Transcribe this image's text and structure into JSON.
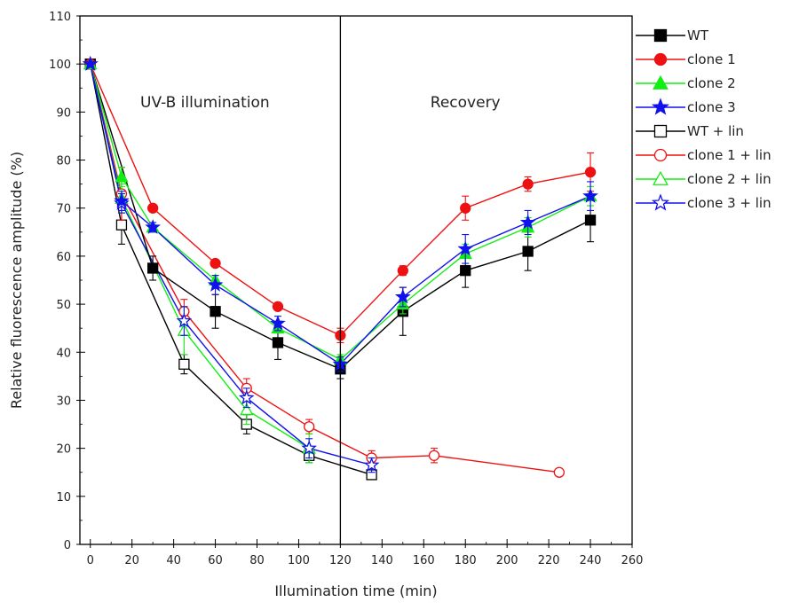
{
  "chart_data": {
    "type": "line",
    "title": "",
    "xlabel": "Illumination time (min)",
    "ylabel": "Relative fluorescence amplitude (%)",
    "xlim": [
      -5,
      260
    ],
    "ylim": [
      0,
      110
    ],
    "xticks": [
      0,
      20,
      40,
      60,
      80,
      100,
      120,
      140,
      160,
      180,
      200,
      220,
      240,
      260
    ],
    "yticks": [
      0,
      10,
      20,
      30,
      40,
      50,
      60,
      70,
      80,
      90,
      100,
      110
    ],
    "grid": false,
    "legend_position": "top-right outside",
    "divider_x": 120,
    "annotations": [
      {
        "text": "UV-B illumination",
        "x": 55,
        "y": 91
      },
      {
        "text": "Recovery",
        "x": 180,
        "y": 91
      }
    ],
    "series": [
      {
        "name": "WT",
        "color": "#000000",
        "marker": "square",
        "filled": true,
        "x": [
          0,
          30,
          60,
          90,
          120,
          150,
          180,
          210,
          240
        ],
        "y": [
          100,
          57.5,
          48.5,
          42,
          36.5,
          48.5,
          57,
          61,
          67.5
        ],
        "err": [
          0,
          2.5,
          3.5,
          3.5,
          2,
          5,
          3.5,
          4,
          4.5
        ]
      },
      {
        "name": "clone 1",
        "color": "#ee1111",
        "marker": "circle",
        "filled": true,
        "x": [
          0,
          30,
          60,
          90,
          120,
          150,
          180,
          210,
          240
        ],
        "y": [
          100,
          70,
          58.5,
          49.5,
          43.5,
          57,
          70,
          75,
          77.5
        ],
        "err": [
          0,
          0.5,
          0.5,
          0.5,
          1.5,
          1,
          2.5,
          1.5,
          4
        ]
      },
      {
        "name": "clone 2",
        "color": "#11ee11",
        "marker": "triangle",
        "filled": true,
        "x": [
          0,
          15,
          30,
          60,
          90,
          120,
          150,
          180,
          210,
          240
        ],
        "y": [
          100,
          76.5,
          66,
          55,
          45,
          38.5,
          50,
          60.5,
          66,
          72.5
        ],
        "err": [
          0,
          2,
          0.5,
          1,
          1,
          1,
          2,
          2,
          2,
          2
        ]
      },
      {
        "name": "clone 3",
        "color": "#1111ee",
        "marker": "star",
        "filled": true,
        "x": [
          0,
          15,
          30,
          60,
          90,
          120,
          150,
          180,
          210,
          240
        ],
        "y": [
          100,
          71.5,
          66,
          54,
          46,
          37.5,
          51.5,
          61.5,
          67,
          72.5
        ],
        "err": [
          0,
          2,
          1,
          2,
          1.5,
          1.5,
          2,
          3,
          2.5,
          3
        ]
      },
      {
        "name": "WT + lin",
        "color": "#000000",
        "marker": "square",
        "filled": false,
        "x": [
          0,
          15,
          45,
          75,
          105,
          135
        ],
        "y": [
          100,
          66.5,
          37.5,
          25,
          18.5,
          14.5
        ],
        "err": [
          0,
          4,
          2,
          2,
          1.5,
          1
        ]
      },
      {
        "name": "clone 1 + lin",
        "color": "#ee1111",
        "marker": "circle",
        "filled": false,
        "x": [
          0,
          15,
          45,
          75,
          105,
          135,
          165,
          225
        ],
        "y": [
          100,
          73,
          48.5,
          32.5,
          24.5,
          18,
          18.5,
          15
        ],
        "err": [
          0,
          5.5,
          2.5,
          2,
          1.5,
          1.5,
          1.5,
          0.5
        ]
      },
      {
        "name": "clone 2 + lin",
        "color": "#11ee11",
        "marker": "triangle",
        "filled": false,
        "x": [
          0,
          15,
          45,
          75,
          105
        ],
        "y": [
          100,
          72,
          44.5,
          28,
          20
        ],
        "err": [
          0,
          3,
          5,
          3,
          3
        ]
      },
      {
        "name": "clone 3 + lin",
        "color": "#1111ee",
        "marker": "star",
        "filled": false,
        "x": [
          0,
          15,
          45,
          75,
          105,
          135
        ],
        "y": [
          100,
          71,
          46.5,
          30.5,
          20,
          16.5
        ],
        "err": [
          0,
          2,
          3,
          2,
          2,
          1.5
        ]
      }
    ]
  }
}
